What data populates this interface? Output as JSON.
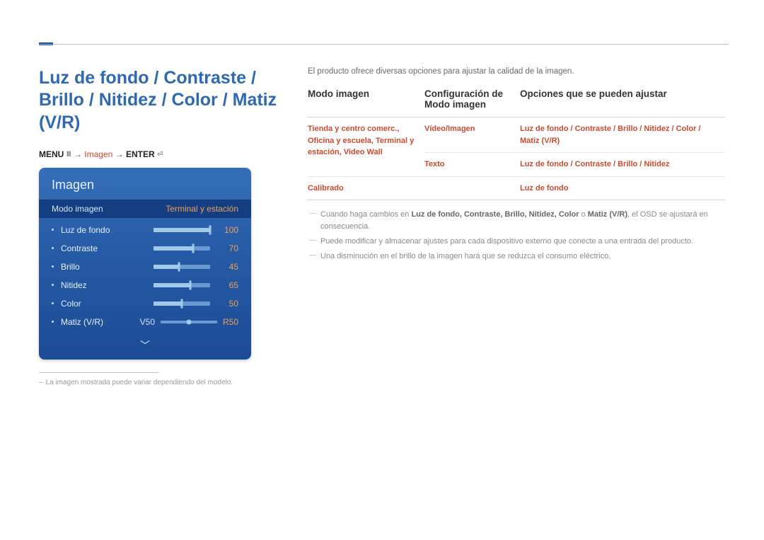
{
  "colors": {
    "title": "#2f69b2",
    "accent_text": "#c94a2f",
    "osd_gradient_top": "#356fb8",
    "osd_gradient_mid": "#255aa5",
    "osd_gradient_bottom": "#1c4c96",
    "osd_dark_row": "#133e82",
    "osd_value": "#f0a055",
    "slider_track": "#6a98d0",
    "slider_fill": "#9fcbe8",
    "body_text": "#6a6a6a",
    "rule": "#d6d6d6"
  },
  "title": "Luz de fondo / Contraste / Brillo / Nitidez / Color / Matiz (V/R)",
  "breadcrumb": {
    "menu": "MENU",
    "menu_icon": "Ⅲ",
    "arrow": "→",
    "step1": "Imagen",
    "step2": "ENTER",
    "enter_icon": "⏎"
  },
  "osd": {
    "title": "Imagen",
    "mode_label": "Modo imagen",
    "mode_value": "Terminal y estación",
    "items": [
      {
        "label": "Luz de fondo",
        "value": 100,
        "pct": 100
      },
      {
        "label": "Contraste",
        "value": 70,
        "pct": 70
      },
      {
        "label": "Brillo",
        "value": 45,
        "pct": 45
      },
      {
        "label": "Nitidez",
        "value": 65,
        "pct": 65
      },
      {
        "label": "Color",
        "value": 50,
        "pct": 50
      }
    ],
    "matiz": {
      "label": "Matiz (V/R)",
      "left": "V50",
      "right": "R50",
      "pos_pct": 50
    }
  },
  "footnote": "La imagen mostrada puede variar dependiendo del modelo.",
  "intro": "El producto ofrece diversas opciones para ajustar la calidad de la imagen.",
  "table": {
    "headers": [
      "Modo imagen",
      "Configuración de Modo imagen",
      "Opciones que se pueden ajustar"
    ],
    "rows": [
      {
        "c1": "Tienda y centro comerc., Oficina y escuela,\nTerminal y estación, Video Wall",
        "c2a": "Vídeo/Imagen",
        "c3a": "Luz de fondo / Contraste / Brillo / Nitidez / Color / Matiz (V/R)",
        "c2b": "Texto",
        "c3b": "Luz de fondo / Contraste / Brillo / Nitidez"
      },
      {
        "c1": "Calibrado",
        "c2a": "",
        "c3a": "Luz de fondo"
      }
    ]
  },
  "notes": [
    {
      "pre": "Cuando haga cambios en ",
      "bold": "Luz de fondo, Contraste, Brillo, Nitidez, Color",
      "mid": " o ",
      "bold2": "Matiz (V/R)",
      "post": ", el OSD se ajustará en consecuencia."
    },
    {
      "text": "Puede modificar y almacenar ajustes para cada dispositivo externo que conecte a una entrada del producto."
    },
    {
      "text": "Una disminución en el brillo de la imagen hará que se reduzca el consumo eléctrico."
    }
  ]
}
